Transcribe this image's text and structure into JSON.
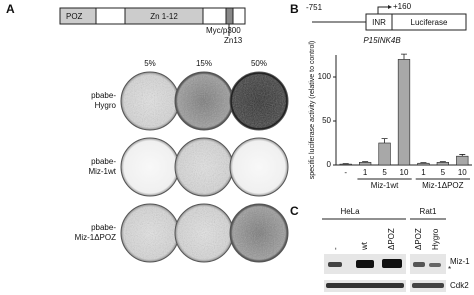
{
  "panel_a": {
    "label": "A",
    "domains": {
      "poz": "POZ",
      "zn": "Zn 1-12",
      "myc": "Myc/p300",
      "zn13": "Zn13"
    },
    "columns": [
      "5%",
      "15%",
      "50%"
    ],
    "rows": [
      [
        "pbabe-",
        "Hygro"
      ],
      [
        "pbabe-",
        "Miz-1wt"
      ],
      [
        "pbabe-",
        "Miz-1ΔPOZ"
      ]
    ]
  },
  "panel_b": {
    "label": "B",
    "start": "-751",
    "end": "+160",
    "inr": "INR",
    "reporter": "Luciferase",
    "gene": "P15INK4B"
  },
  "chart_data": {
    "type": "bar",
    "ylabel": "specific luciferase activity (relative to control)",
    "categories": [
      "-",
      "1",
      "5",
      "10",
      "1",
      "5",
      "10"
    ],
    "values": [
      1,
      3,
      25,
      120,
      2,
      3,
      10
    ],
    "errors": [
      0.5,
      0.8,
      5,
      6,
      0.6,
      0.8,
      2
    ],
    "groups": [
      "Miz-1wt",
      "Miz-1ΔPOZ"
    ],
    "color": "#a8a8a8",
    "ylim": [
      0,
      125
    ],
    "yticks": [
      0,
      50,
      100
    ]
  },
  "panel_c": {
    "label": "C",
    "cells": [
      "HeLa",
      "Rat1"
    ],
    "lanes": [
      "-",
      "wt",
      "ΔPOZ",
      "ΔPOZ",
      "Hygro"
    ],
    "bands": [
      "Miz-1",
      "*",
      "Cdk2"
    ]
  }
}
